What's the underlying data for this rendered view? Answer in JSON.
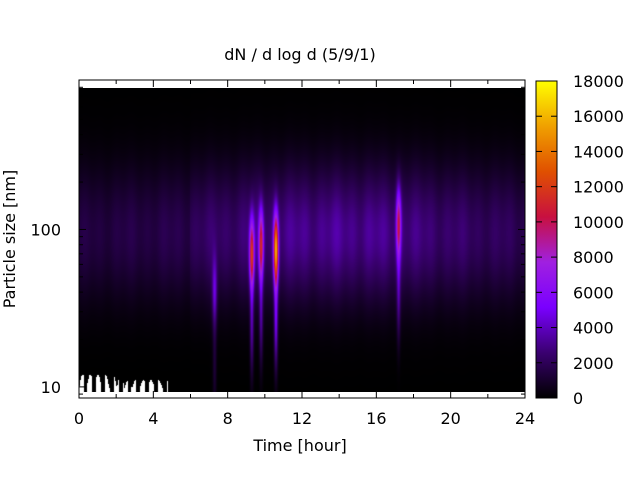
{
  "chart_data": {
    "type": "heatmap",
    "title": "dN / d log d (5/9/1)",
    "xlabel": "Time [hour]",
    "ylabel": "Particle size [nm]",
    "x_scale": "linear",
    "xlim": [
      0,
      24
    ],
    "x_ticks": [
      0,
      4,
      8,
      12,
      16,
      20,
      24
    ],
    "x_tick_labels": [
      "0",
      "4",
      "8",
      "12",
      "16",
      "20",
      "24"
    ],
    "x_minor_ticks": [
      2,
      6,
      10,
      14,
      18,
      22
    ],
    "y_scale": "log",
    "ylim": [
      8.5,
      890
    ],
    "y_ticks": [
      10,
      100
    ],
    "y_tick_labels": [
      "10",
      "100"
    ],
    "colorbar": {
      "min": 0,
      "max": 18000,
      "ticks": [
        0,
        2000,
        4000,
        6000,
        8000,
        10000,
        12000,
        14000,
        16000,
        18000
      ],
      "tick_labels": [
        "0",
        "2000",
        "4000",
        "6000",
        "8000",
        "10000",
        "12000",
        "14000",
        "16000",
        "18000"
      ],
      "colormap": [
        "#000000",
        "#3a0070",
        "#7a00ff",
        "#a020e0",
        "#c81040",
        "#e05000",
        "#f0a000",
        "#ffff00"
      ]
    },
    "features": {
      "background_mode_nm": 95,
      "background_level": 3700,
      "night_low_nm": 12,
      "bursts": [
        {
          "time": 7.3,
          "size_nm": 40,
          "value": 3500
        },
        {
          "time": 9.3,
          "size_nm": 70,
          "value": 9500
        },
        {
          "time": 9.8,
          "size_nm": 80,
          "value": 8500
        },
        {
          "time": 10.6,
          "size_nm": 75,
          "value": 13000
        },
        {
          "time": 17.2,
          "size_nm": 110,
          "value": 7500
        }
      ],
      "missing_data_hours": [
        0,
        4.8
      ]
    }
  }
}
